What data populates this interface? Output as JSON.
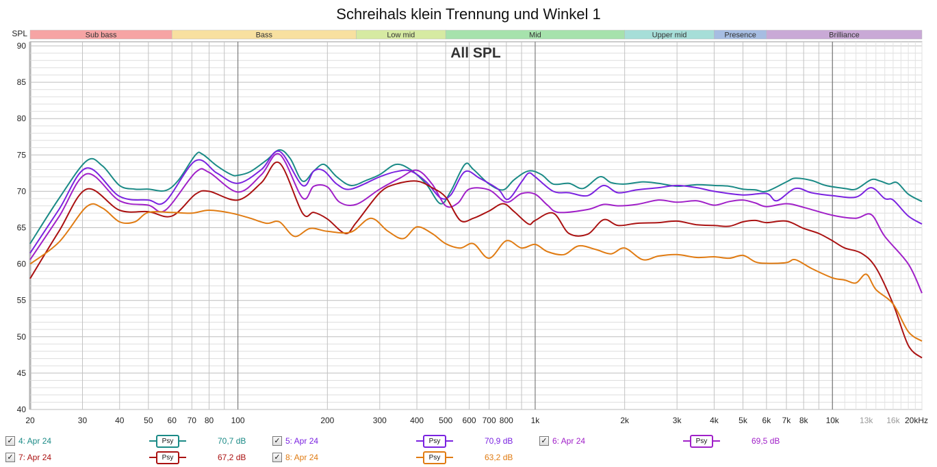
{
  "title": "Schreihals klein Trennung und Winkel 1",
  "chart_data": {
    "type": "line",
    "title": "Schreihals klein Trennung und Winkel 1",
    "overlay_label": "All SPL",
    "ylabel": "SPL",
    "xlabel": "Hz",
    "xscale": "log",
    "xlim": [
      20,
      20000
    ],
    "ylim": [
      40,
      90
    ],
    "yticks": [
      90,
      85,
      80,
      75,
      70,
      65,
      60,
      55,
      50,
      45,
      40
    ],
    "xticks": [
      {
        "v": 20,
        "l": "20"
      },
      {
        "v": 30,
        "l": "30"
      },
      {
        "v": 40,
        "l": "40"
      },
      {
        "v": 50,
        "l": "50"
      },
      {
        "v": 60,
        "l": "60"
      },
      {
        "v": 70,
        "l": "70"
      },
      {
        "v": 80,
        "l": "80"
      },
      {
        "v": 100,
        "l": "100"
      },
      {
        "v": 200,
        "l": "200"
      },
      {
        "v": 300,
        "l": "300"
      },
      {
        "v": 400,
        "l": "400"
      },
      {
        "v": 500,
        "l": "500"
      },
      {
        "v": 600,
        "l": "600"
      },
      {
        "v": 700,
        "l": "700"
      },
      {
        "v": 800,
        "l": "800"
      },
      {
        "v": 1000,
        "l": "1k"
      },
      {
        "v": 2000,
        "l": "2k"
      },
      {
        "v": 3000,
        "l": "3k"
      },
      {
        "v": 4000,
        "l": "4k"
      },
      {
        "v": 5000,
        "l": "5k"
      },
      {
        "v": 6000,
        "l": "6k"
      },
      {
        "v": 7000,
        "l": "7k"
      },
      {
        "v": 8000,
        "l": "8k"
      },
      {
        "v": 10000,
        "l": "10k"
      },
      {
        "v": 13000,
        "l": "13k",
        "muted": true
      },
      {
        "v": 16000,
        "l": "16k",
        "muted": true
      },
      {
        "v": 20000,
        "l": "20kHz"
      }
    ],
    "grid": true,
    "bands": [
      {
        "name": "Sub bass",
        "from": 20,
        "to": 60,
        "color": "#f6a4a4"
      },
      {
        "name": "Bass",
        "from": 60,
        "to": 250,
        "color": "#f8e0a0"
      },
      {
        "name": "Low mid",
        "from": 250,
        "to": 500,
        "color": "#d6eaa2"
      },
      {
        "name": "Mid",
        "from": 500,
        "to": 2000,
        "color": "#a6e2ac"
      },
      {
        "name": "Upper mid",
        "from": 2000,
        "to": 4000,
        "color": "#a6ded8"
      },
      {
        "name": "Presence",
        "from": 4000,
        "to": 6000,
        "color": "#a6bde2"
      },
      {
        "name": "Brilliance",
        "from": 6000,
        "to": 20000,
        "color": "#c9a9d6"
      }
    ],
    "series": [
      {
        "name": "4: Apr 24",
        "value": "70,7 dB",
        "color": "#1a8a86",
        "points": [
          [
            20,
            62.8
          ],
          [
            25,
            69
          ],
          [
            31,
            74.2
          ],
          [
            35,
            73.5
          ],
          [
            40,
            70.8
          ],
          [
            45,
            70.3
          ],
          [
            50,
            70.3
          ],
          [
            57,
            70.1
          ],
          [
            63,
            71.5
          ],
          [
            72,
            75
          ],
          [
            76,
            75.1
          ],
          [
            85,
            73.5
          ],
          [
            95,
            72.3
          ],
          [
            100,
            72.2
          ],
          [
            110,
            72.7
          ],
          [
            125,
            74.3
          ],
          [
            138,
            75.7
          ],
          [
            150,
            74.5
          ],
          [
            165,
            71.4
          ],
          [
            180,
            72.8
          ],
          [
            195,
            73.7
          ],
          [
            215,
            72
          ],
          [
            240,
            70.8
          ],
          [
            270,
            71.5
          ],
          [
            300,
            72.3
          ],
          [
            340,
            73.7
          ],
          [
            380,
            73
          ],
          [
            430,
            71
          ],
          [
            480,
            68.3
          ],
          [
            520,
            70
          ],
          [
            580,
            73.7
          ],
          [
            620,
            73
          ],
          [
            700,
            71
          ],
          [
            780,
            70.2
          ],
          [
            850,
            71.6
          ],
          [
            950,
            72.8
          ],
          [
            1050,
            72.3
          ],
          [
            1150,
            71
          ],
          [
            1300,
            71.1
          ],
          [
            1450,
            70.4
          ],
          [
            1650,
            72
          ],
          [
            1800,
            71.2
          ],
          [
            2000,
            71
          ],
          [
            2300,
            71.3
          ],
          [
            2600,
            71.1
          ],
          [
            3000,
            70.7
          ],
          [
            3500,
            70.9
          ],
          [
            4000,
            70.8
          ],
          [
            4500,
            70.7
          ],
          [
            5000,
            70.3
          ],
          [
            5500,
            70.2
          ],
          [
            6000,
            70
          ],
          [
            7000,
            71.3
          ],
          [
            7500,
            71.8
          ],
          [
            8500,
            71.5
          ],
          [
            9500,
            70.8
          ],
          [
            11000,
            70.4
          ],
          [
            12000,
            70.3
          ],
          [
            13500,
            71.6
          ],
          [
            14500,
            71.4
          ],
          [
            15500,
            71
          ],
          [
            16500,
            71.2
          ],
          [
            18000,
            69.6
          ],
          [
            20000,
            68.6
          ]
        ]
      },
      {
        "name": "5: Apr 24",
        "value": "70,9 dB",
        "color": "#7a22e0",
        "points": [
          [
            20,
            61.5
          ],
          [
            25,
            67.5
          ],
          [
            31,
            73.2
          ],
          [
            40,
            69.3
          ],
          [
            50,
            68.8
          ],
          [
            57,
            68.6
          ],
          [
            72,
            74.2
          ],
          [
            85,
            72.5
          ],
          [
            100,
            71.1
          ],
          [
            120,
            73
          ],
          [
            138,
            75.5
          ],
          [
            165,
            70.8
          ],
          [
            180,
            72.8
          ],
          [
            195,
            72.8
          ],
          [
            215,
            71
          ],
          [
            240,
            70.3
          ],
          [
            300,
            72
          ],
          [
            340,
            72.7
          ],
          [
            380,
            72.8
          ],
          [
            430,
            71.3
          ],
          [
            480,
            69.1
          ],
          [
            520,
            69.5
          ],
          [
            580,
            72.7
          ],
          [
            650,
            71.8
          ],
          [
            750,
            70.3
          ],
          [
            810,
            68.9
          ],
          [
            900,
            71.3
          ],
          [
            950,
            72.5
          ],
          [
            1000,
            72
          ],
          [
            1150,
            70
          ],
          [
            1300,
            69.8
          ],
          [
            1500,
            69.4
          ],
          [
            1700,
            70.8
          ],
          [
            1900,
            69.8
          ],
          [
            2200,
            70.2
          ],
          [
            2600,
            70.5
          ],
          [
            3000,
            70.8
          ],
          [
            3500,
            70.5
          ],
          [
            4000,
            70
          ],
          [
            5000,
            69.5
          ],
          [
            6000,
            69.7
          ],
          [
            6500,
            68.7
          ],
          [
            7500,
            70.4
          ],
          [
            8500,
            69.8
          ],
          [
            10000,
            69.4
          ],
          [
            12000,
            69.2
          ],
          [
            13500,
            70.5
          ],
          [
            15000,
            69
          ],
          [
            16000,
            68.8
          ],
          [
            18000,
            66.6
          ],
          [
            20000,
            65.5
          ]
        ]
      },
      {
        "name": "6: Apr 24",
        "value": "69,5 dB",
        "color": "#a020c8",
        "points": [
          [
            20,
            60.6
          ],
          [
            25,
            66.5
          ],
          [
            31,
            72.4
          ],
          [
            40,
            68.7
          ],
          [
            50,
            68.1
          ],
          [
            57,
            67.4
          ],
          [
            72,
            72.6
          ],
          [
            80,
            72.6
          ],
          [
            100,
            69.9
          ],
          [
            120,
            72.3
          ],
          [
            138,
            75.1
          ],
          [
            165,
            69.1
          ],
          [
            180,
            70.7
          ],
          [
            200,
            70.6
          ],
          [
            220,
            68.5
          ],
          [
            250,
            68.2
          ],
          [
            300,
            70.3
          ],
          [
            350,
            71.8
          ],
          [
            400,
            72.9
          ],
          [
            450,
            71
          ],
          [
            500,
            68
          ],
          [
            550,
            68.4
          ],
          [
            600,
            70.3
          ],
          [
            700,
            70.2
          ],
          [
            800,
            68.5
          ],
          [
            900,
            69.7
          ],
          [
            1000,
            69.6
          ],
          [
            1100,
            68.1
          ],
          [
            1200,
            67.1
          ],
          [
            1500,
            67.5
          ],
          [
            1700,
            68.2
          ],
          [
            1900,
            68
          ],
          [
            2200,
            68.2
          ],
          [
            2600,
            68.8
          ],
          [
            3000,
            68.5
          ],
          [
            3500,
            68.7
          ],
          [
            4000,
            68.1
          ],
          [
            4500,
            68.6
          ],
          [
            5000,
            68.8
          ],
          [
            5500,
            68.4
          ],
          [
            6000,
            67.9
          ],
          [
            7000,
            68.3
          ],
          [
            8000,
            67.8
          ],
          [
            10000,
            66.7
          ],
          [
            12000,
            66.3
          ],
          [
            13500,
            66.8
          ],
          [
            15000,
            63.8
          ],
          [
            18000,
            60
          ],
          [
            20000,
            56
          ]
        ]
      },
      {
        "name": "7: Apr 24",
        "value": "67,2 dB",
        "color": "#aa1111",
        "points": [
          [
            20,
            58
          ],
          [
            25,
            64.5
          ],
          [
            31,
            70.3
          ],
          [
            40,
            67.4
          ],
          [
            50,
            67.2
          ],
          [
            60,
            66.6
          ],
          [
            72,
            69.6
          ],
          [
            80,
            70
          ],
          [
            100,
            68.8
          ],
          [
            120,
            71.2
          ],
          [
            138,
            73.9
          ],
          [
            165,
            67
          ],
          [
            180,
            67.1
          ],
          [
            200,
            66.2
          ],
          [
            230,
            64.2
          ],
          [
            250,
            65.7
          ],
          [
            300,
            69.8
          ],
          [
            340,
            71
          ],
          [
            400,
            71.4
          ],
          [
            450,
            70.5
          ],
          [
            500,
            69.2
          ],
          [
            560,
            66
          ],
          [
            620,
            66.3
          ],
          [
            700,
            67.3
          ],
          [
            780,
            68.3
          ],
          [
            850,
            67.2
          ],
          [
            950,
            65.5
          ],
          [
            1000,
            66
          ],
          [
            1150,
            67
          ],
          [
            1300,
            64.2
          ],
          [
            1500,
            64.1
          ],
          [
            1700,
            66.1
          ],
          [
            1900,
            65.3
          ],
          [
            2200,
            65.6
          ],
          [
            2600,
            65.7
          ],
          [
            3000,
            65.9
          ],
          [
            3500,
            65.4
          ],
          [
            4000,
            65.3
          ],
          [
            4500,
            65.2
          ],
          [
            5000,
            65.8
          ],
          [
            5500,
            66
          ],
          [
            6000,
            65.7
          ],
          [
            7000,
            65.9
          ],
          [
            8000,
            64.9
          ],
          [
            9000,
            64.2
          ],
          [
            10000,
            63.2
          ],
          [
            11000,
            62.2
          ],
          [
            12500,
            61.5
          ],
          [
            14000,
            59.5
          ],
          [
            16000,
            54.5
          ],
          [
            18000,
            48.8
          ],
          [
            20000,
            47.1
          ]
        ]
      },
      {
        "name": "8: Apr 24",
        "value": "63,2 dB",
        "color": "#e07b12",
        "points": [
          [
            20,
            60
          ],
          [
            25,
            63
          ],
          [
            31,
            67.9
          ],
          [
            35,
            67.7
          ],
          [
            40,
            65.8
          ],
          [
            45,
            65.8
          ],
          [
            50,
            67.1
          ],
          [
            60,
            67.1
          ],
          [
            70,
            67
          ],
          [
            80,
            67.4
          ],
          [
            95,
            67
          ],
          [
            110,
            66.3
          ],
          [
            125,
            65.6
          ],
          [
            138,
            65.8
          ],
          [
            155,
            63.8
          ],
          [
            175,
            64.9
          ],
          [
            200,
            64.5
          ],
          [
            240,
            64.4
          ],
          [
            280,
            66.3
          ],
          [
            320,
            64.5
          ],
          [
            360,
            63.5
          ],
          [
            400,
            65.1
          ],
          [
            450,
            64.2
          ],
          [
            500,
            62.8
          ],
          [
            560,
            62.2
          ],
          [
            620,
            62.8
          ],
          [
            700,
            60.8
          ],
          [
            800,
            63.2
          ],
          [
            900,
            62.2
          ],
          [
            1000,
            62.7
          ],
          [
            1100,
            61.7
          ],
          [
            1250,
            61.3
          ],
          [
            1400,
            62.5
          ],
          [
            1600,
            62
          ],
          [
            1800,
            61.4
          ],
          [
            2000,
            62.2
          ],
          [
            2300,
            60.6
          ],
          [
            2600,
            61.1
          ],
          [
            3000,
            61.3
          ],
          [
            3500,
            60.9
          ],
          [
            4000,
            61
          ],
          [
            4500,
            60.8
          ],
          [
            5000,
            61.2
          ],
          [
            5500,
            60.3
          ],
          [
            6000,
            60.1
          ],
          [
            7000,
            60.2
          ],
          [
            7500,
            60.6
          ],
          [
            8500,
            59.4
          ],
          [
            10000,
            58.1
          ],
          [
            11000,
            57.8
          ],
          [
            12000,
            57.4
          ],
          [
            13000,
            58.6
          ],
          [
            14000,
            56.5
          ],
          [
            16000,
            54.5
          ],
          [
            18000,
            50.7
          ],
          [
            20000,
            49.4
          ]
        ]
      }
    ]
  },
  "legend": {
    "psy_label": "Psy",
    "check_mark": "✓"
  }
}
